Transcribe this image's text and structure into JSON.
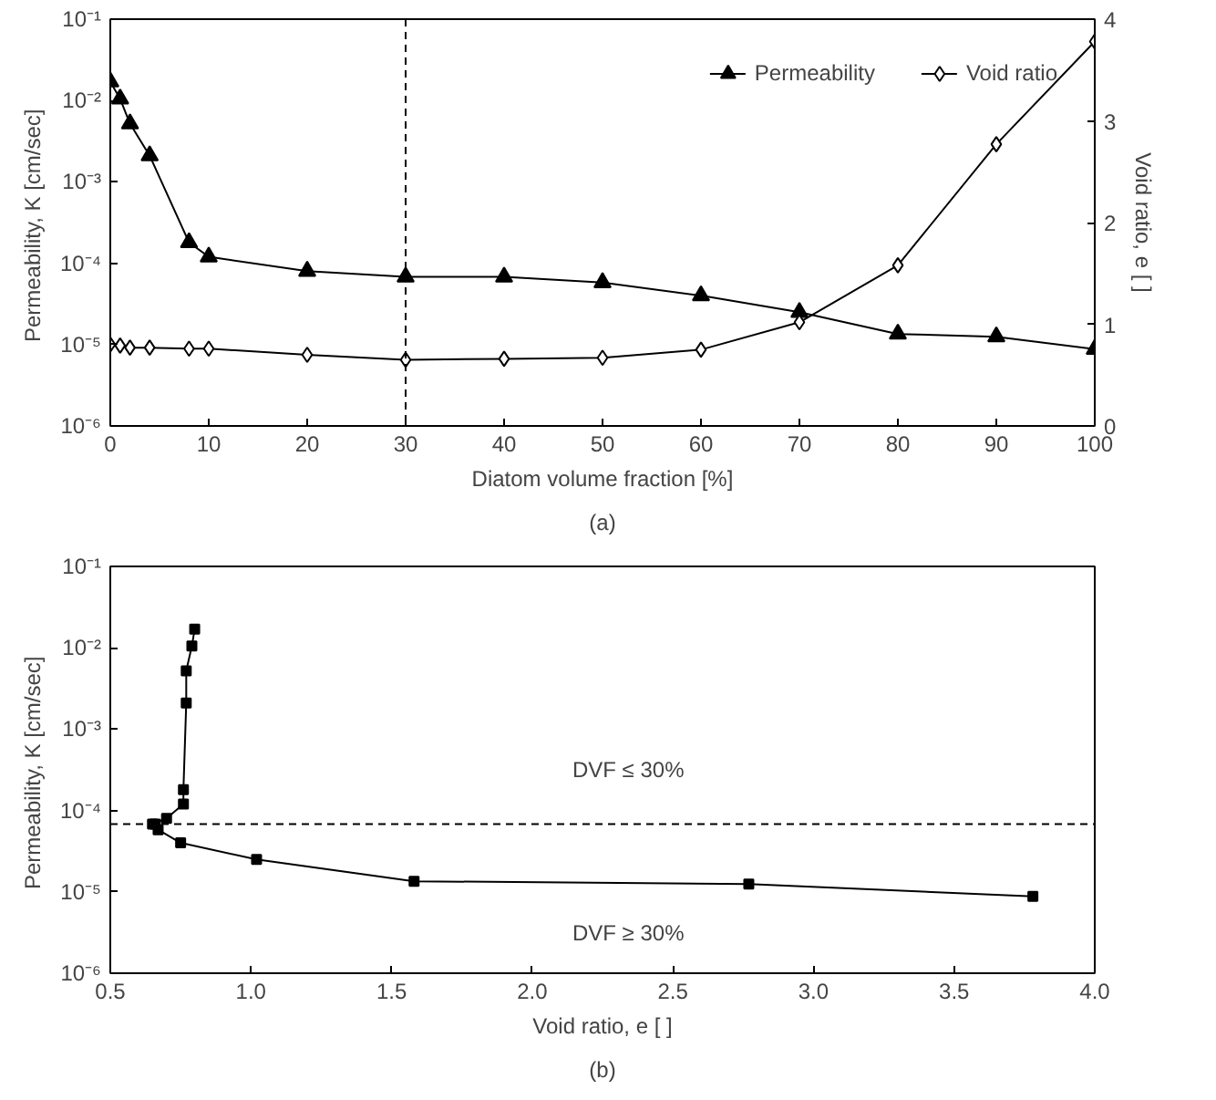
{
  "chart_data": [
    {
      "type": "line",
      "xlabel": "Diatom volume fraction [%]",
      "ylabel": "Permeability,  K [cm/sec]",
      "y2label": "Void ratio, e [ ]",
      "annotations": [
        "(a)"
      ],
      "x": [
        0,
        1,
        2,
        4,
        8,
        10,
        20,
        30,
        40,
        50,
        60,
        70,
        80,
        90,
        100
      ],
      "series": [
        {
          "name": "Permeability",
          "color": "#000000",
          "marker": "triangle",
          "values": [
            0.017,
            0.0105,
            0.0052,
            0.0021,
            0.00018,
            0.00012,
            8e-05,
            6.8e-05,
            6.8e-05,
            5.8e-05,
            4e-05,
            2.5e-05,
            1.35e-05,
            1.25e-05,
            8.8e-06
          ]
        },
        {
          "name": "Void ratio",
          "color": "#000000",
          "marker": "diamond",
          "axis": "y2",
          "values": [
            0.8,
            0.79,
            0.77,
            0.77,
            0.76,
            0.76,
            0.7,
            0.65,
            0.66,
            0.67,
            0.75,
            1.02,
            1.58,
            2.77,
            3.78
          ]
        }
      ],
      "log": "y",
      "xlim": [
        0,
        100
      ],
      "xticks": [
        0,
        10,
        20,
        30,
        40,
        50,
        60,
        70,
        80,
        90,
        100
      ],
      "ylim": [
        1e-06,
        0.1
      ],
      "yticks": [
        {
          "value": 1e-06,
          "label": "10⁻⁶"
        },
        {
          "value": 1e-05,
          "label": "10⁻⁵"
        },
        {
          "value": 0.0001,
          "label": "10⁻⁴"
        },
        {
          "value": 0.001,
          "label": "10⁻³"
        },
        {
          "value": 0.01,
          "label": "10⁻²"
        },
        {
          "value": 0.1,
          "label": "10⁻¹"
        }
      ],
      "y2lim": [
        0,
        4
      ],
      "y2ticks": [
        0,
        1,
        2,
        3,
        4
      ],
      "ref_lines": [
        {
          "axis": "x",
          "value": 30,
          "line_style": "dashed"
        }
      ],
      "legend": "top right",
      "grid": false
    },
    {
      "type": "line",
      "xlabel": "Void ratio, e [ ]",
      "ylabel": "Permeability,  K [cm/sec]",
      "annotations": [
        "DVF ≤ 30%",
        "DVF ≥ 30%",
        "(b)"
      ],
      "series": [
        {
          "color": "#000000",
          "marker": "square",
          "x": [
            0.8,
            0.79,
            0.77,
            0.77,
            0.76,
            0.76,
            0.7,
            0.65,
            0.66,
            0.67,
            0.75,
            1.02,
            1.58,
            2.77,
            3.78
          ],
          "values": [
            0.017,
            0.0105,
            0.0052,
            0.0021,
            0.00018,
            0.00012,
            8e-05,
            6.8e-05,
            6.8e-05,
            5.8e-05,
            4e-05,
            2.5e-05,
            1.35e-05,
            1.25e-05,
            8.8e-06
          ]
        }
      ],
      "log": "y",
      "xlim": [
        0.5,
        4.0
      ],
      "xticks": [
        0.5,
        {
          "value": 1,
          "label": "1.0"
        },
        1.5,
        {
          "value": 2,
          "label": "2.0"
        },
        2.5,
        {
          "value": 3,
          "label": "3.0"
        },
        3.5,
        {
          "value": 4,
          "label": "4.0"
        }
      ],
      "ylim": [
        1e-06,
        0.1
      ],
      "yticks": [
        {
          "value": 1e-06,
          "label": "10⁻⁶"
        },
        {
          "value": 1e-05,
          "label": "10⁻⁵"
        },
        {
          "value": 0.0001,
          "label": "10⁻⁴"
        },
        {
          "value": 0.001,
          "label": "10⁻³"
        },
        {
          "value": 0.01,
          "label": "10⁻²"
        },
        {
          "value": 0.1,
          "label": "10⁻¹"
        }
      ],
      "ref_lines": [
        {
          "axis": "y",
          "value": 6.8e-05,
          "line_style": "dashed"
        }
      ],
      "grid": false
    }
  ]
}
